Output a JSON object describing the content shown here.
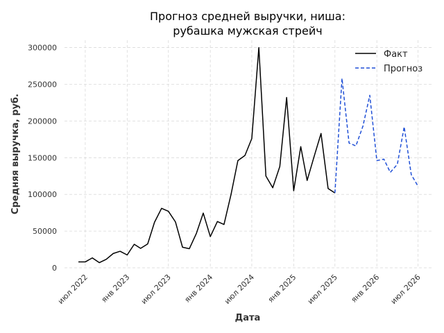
{
  "chart_data": {
    "type": "line",
    "title_lines": [
      "Прогноз средней выручки, ниша:",
      "рубашка мужская стрейч"
    ],
    "xlabel": "Дата",
    "ylabel": "Средняя выручка, руб.",
    "ylim": [
      0,
      310000
    ],
    "xlim": [
      "2022-04-01",
      "2026-09-01"
    ],
    "grid": true,
    "legend_position": "top-right",
    "y_ticks": [
      0,
      50000,
      100000,
      150000,
      200000,
      250000,
      300000
    ],
    "y_tick_labels": [
      "0",
      "50000",
      "100000",
      "150000",
      "200000",
      "250000",
      "300000"
    ],
    "x_ticks": [
      "2022-07-01",
      "2023-01-01",
      "2023-07-01",
      "2024-01-01",
      "2024-07-01",
      "2025-01-01",
      "2025-07-01",
      "2026-01-01",
      "2026-07-01"
    ],
    "x_tick_labels": [
      "июл 2022",
      "янв 2023",
      "июл 2023",
      "янв 2024",
      "июл 2024",
      "янв 2025",
      "июл 2025",
      "янв 2026",
      "июл 2026"
    ],
    "series": [
      {
        "name": "Факт",
        "color": "#000000",
        "style": "solid",
        "points": [
          [
            "2022-06-01",
            8000
          ],
          [
            "2022-07-01",
            8000
          ],
          [
            "2022-08-01",
            13500
          ],
          [
            "2022-09-01",
            7000
          ],
          [
            "2022-10-01",
            11500
          ],
          [
            "2022-11-01",
            19500
          ],
          [
            "2022-12-01",
            22500
          ],
          [
            "2023-01-01",
            17500
          ],
          [
            "2023-02-01",
            32000
          ],
          [
            "2023-03-01",
            26500
          ],
          [
            "2023-04-01",
            32500
          ],
          [
            "2023-05-01",
            62000
          ],
          [
            "2023-06-01",
            81000
          ],
          [
            "2023-07-01",
            77000
          ],
          [
            "2023-08-01",
            62500
          ],
          [
            "2023-09-01",
            28000
          ],
          [
            "2023-10-01",
            26000
          ],
          [
            "2023-11-01",
            47000
          ],
          [
            "2023-12-01",
            74500
          ],
          [
            "2024-01-01",
            42500
          ],
          [
            "2024-02-01",
            63000
          ],
          [
            "2024-03-01",
            59000
          ],
          [
            "2024-04-01",
            100000
          ],
          [
            "2024-05-01",
            146000
          ],
          [
            "2024-06-01",
            153000
          ],
          [
            "2024-07-01",
            176000
          ],
          [
            "2024-08-01",
            300000
          ],
          [
            "2024-09-01",
            125000
          ],
          [
            "2024-10-01",
            109000
          ],
          [
            "2024-11-01",
            138000
          ],
          [
            "2024-12-01",
            232000
          ],
          [
            "2025-01-01",
            105000
          ],
          [
            "2025-02-01",
            165000
          ],
          [
            "2025-03-01",
            119000
          ],
          [
            "2025-04-01",
            152000
          ],
          [
            "2025-05-01",
            183000
          ],
          [
            "2025-06-01",
            108000
          ],
          [
            "2025-07-01",
            102000
          ]
        ]
      },
      {
        "name": "Прогноз",
        "color": "#1f4fd6",
        "style": "dashed",
        "points": [
          [
            "2025-07-01",
            102000
          ],
          [
            "2025-08-01",
            258000
          ],
          [
            "2025-09-01",
            170000
          ],
          [
            "2025-10-01",
            166000
          ],
          [
            "2025-11-01",
            193000
          ],
          [
            "2025-12-01",
            235000
          ],
          [
            "2026-01-01",
            146000
          ],
          [
            "2026-02-01",
            148000
          ],
          [
            "2026-03-01",
            130000
          ],
          [
            "2026-04-01",
            141000
          ],
          [
            "2026-05-01",
            192000
          ],
          [
            "2026-06-01",
            127000
          ],
          [
            "2026-07-01",
            111000
          ]
        ]
      }
    ]
  }
}
